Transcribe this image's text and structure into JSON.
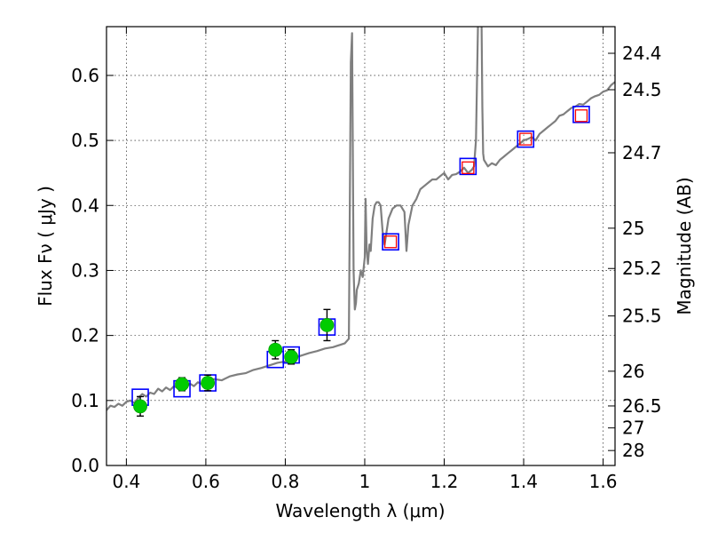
{
  "chart_data": {
    "type": "scatter",
    "xlabel": "Wavelength  λ (μm)",
    "ylabel": "Flux  Fν  ( μJy )",
    "ylabel_right": "Magnitude (AB)",
    "xlim": [
      0.35,
      1.63
    ],
    "ylim": [
      0.0,
      0.675
    ],
    "grid": true,
    "x_ticks": [
      0.4,
      0.6,
      0.8,
      1.0,
      1.2,
      1.4,
      1.6
    ],
    "x_tick_labels": [
      "0.4",
      "0.6",
      "0.8",
      "1",
      "1.2",
      "1.4",
      "1.6"
    ],
    "y_ticks": [
      0.0,
      0.1,
      0.2,
      0.3,
      0.4,
      0.5,
      0.6
    ],
    "y_tick_labels": [
      "0.0",
      "0.1",
      "0.2",
      "0.3",
      "0.4",
      "0.5",
      "0.6"
    ],
    "right_ticks": [
      {
        "label": "24.4",
        "flux": 0.634
      },
      {
        "label": "24.5",
        "flux": 0.578
      },
      {
        "label": "24.7",
        "flux": 0.481
      },
      {
        "label": "25",
        "flux": 0.365
      },
      {
        "label": "25.2",
        "flux": 0.303
      },
      {
        "label": "25.5",
        "flux": 0.23
      },
      {
        "label": "26",
        "flux": 0.145
      },
      {
        "label": "26.5",
        "flux": 0.0916
      },
      {
        "label": "27",
        "flux": 0.0578
      },
      {
        "label": "28",
        "flux": 0.023
      }
    ],
    "series": [
      {
        "kind": "line",
        "color": "#7f7f7f",
        "x": [
          0.35,
          0.36,
          0.37,
          0.38,
          0.39,
          0.4,
          0.41,
          0.42,
          0.43,
          0.44,
          0.45,
          0.46,
          0.47,
          0.48,
          0.49,
          0.5,
          0.51,
          0.52,
          0.53,
          0.54,
          0.55,
          0.56,
          0.57,
          0.58,
          0.59,
          0.6,
          0.62,
          0.64,
          0.66,
          0.68,
          0.7,
          0.72,
          0.74,
          0.76,
          0.78,
          0.8,
          0.82,
          0.84,
          0.86,
          0.88,
          0.9,
          0.92,
          0.94,
          0.95,
          0.96,
          0.965,
          0.968,
          0.972,
          0.975,
          0.978,
          0.98,
          0.985,
          0.99,
          0.995,
          1.0,
          1.002,
          1.005,
          1.008,
          1.012,
          1.015,
          1.02,
          1.025,
          1.03,
          1.035,
          1.04,
          1.045,
          1.05,
          1.06,
          1.07,
          1.08,
          1.09,
          1.1,
          1.105,
          1.11,
          1.12,
          1.13,
          1.14,
          1.15,
          1.16,
          1.17,
          1.18,
          1.19,
          1.2,
          1.21,
          1.22,
          1.23,
          1.24,
          1.25,
          1.26,
          1.27,
          1.275,
          1.28,
          1.285,
          1.29,
          1.292,
          1.294,
          1.296,
          1.298,
          1.3,
          1.31,
          1.32,
          1.33,
          1.34,
          1.35,
          1.36,
          1.37,
          1.38,
          1.39,
          1.4,
          1.41,
          1.42,
          1.43,
          1.44,
          1.45,
          1.46,
          1.47,
          1.48,
          1.49,
          1.5,
          1.51,
          1.52,
          1.53,
          1.54,
          1.55,
          1.56,
          1.57,
          1.58,
          1.59,
          1.6,
          1.61,
          1.62,
          1.63
        ],
        "y": [
          0.085,
          0.092,
          0.09,
          0.095,
          0.092,
          0.098,
          0.1,
          0.096,
          0.104,
          0.11,
          0.106,
          0.112,
          0.11,
          0.118,
          0.114,
          0.12,
          0.116,
          0.122,
          0.119,
          0.124,
          0.12,
          0.126,
          0.122,
          0.128,
          0.125,
          0.13,
          0.133,
          0.131,
          0.137,
          0.14,
          0.142,
          0.147,
          0.15,
          0.154,
          0.158,
          0.16,
          0.165,
          0.169,
          0.173,
          0.176,
          0.18,
          0.182,
          0.186,
          0.188,
          0.195,
          0.62,
          0.665,
          0.3,
          0.24,
          0.25,
          0.27,
          0.28,
          0.3,
          0.29,
          0.32,
          0.41,
          0.33,
          0.31,
          0.34,
          0.33,
          0.38,
          0.4,
          0.405,
          0.405,
          0.4,
          0.36,
          0.34,
          0.38,
          0.395,
          0.4,
          0.4,
          0.39,
          0.33,
          0.37,
          0.4,
          0.41,
          0.425,
          0.43,
          0.435,
          0.44,
          0.44,
          0.445,
          0.45,
          0.44,
          0.447,
          0.448,
          0.452,
          0.458,
          0.45,
          0.455,
          0.46,
          0.5,
          0.68,
          0.68,
          0.68,
          0.68,
          0.55,
          0.48,
          0.47,
          0.46,
          0.465,
          0.462,
          0.47,
          0.475,
          0.48,
          0.485,
          0.49,
          0.495,
          0.5,
          0.502,
          0.505,
          0.5,
          0.51,
          0.515,
          0.52,
          0.525,
          0.53,
          0.538,
          0.54,
          0.545,
          0.55,
          0.552,
          0.556,
          0.555,
          0.56,
          0.565,
          0.568,
          0.57,
          0.575,
          0.577,
          0.585,
          0.59
        ]
      },
      {
        "kind": "points",
        "marker": "square",
        "edge_color": "#0000ff",
        "x": [
          0.435,
          0.54,
          0.605,
          0.775,
          0.815,
          0.905,
          1.065,
          1.26,
          1.405,
          1.545
        ],
        "y": [
          0.105,
          0.118,
          0.127,
          0.163,
          0.17,
          0.213,
          0.344,
          0.46,
          0.502,
          0.54
        ]
      },
      {
        "kind": "points",
        "marker": "square",
        "edge_color": "#ff0000",
        "x": [
          1.065,
          1.26,
          1.405,
          1.545
        ],
        "y": [
          0.344,
          0.458,
          0.502,
          0.538
        ]
      },
      {
        "kind": "errorbar",
        "marker": "circle",
        "color": "#00cc00",
        "x": [
          0.435,
          0.54,
          0.605,
          0.775,
          0.815,
          0.905
        ],
        "y": [
          0.091,
          0.125,
          0.127,
          0.178,
          0.167,
          0.216
        ],
        "err": [
          0.015,
          0.01,
          0.012,
          0.014,
          0.011,
          0.024
        ]
      }
    ]
  }
}
